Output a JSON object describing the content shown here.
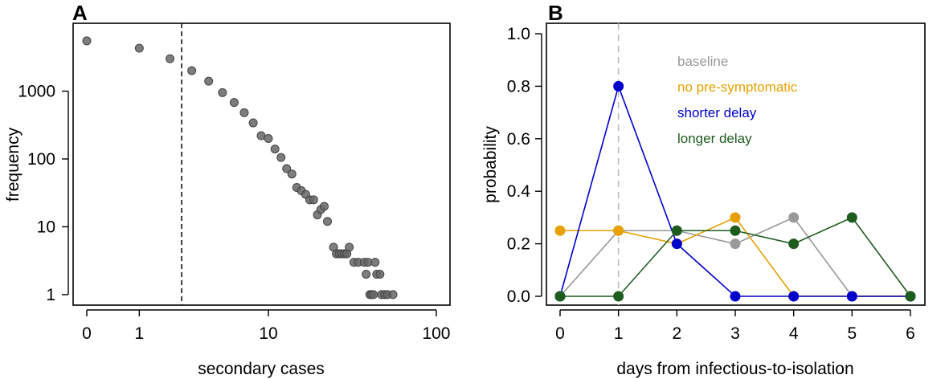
{
  "chart_data": [
    {
      "panel": "A",
      "type": "scatter",
      "xlabel": "secondary cases",
      "ylabel": "frequency",
      "x_scale": "log(x+1)",
      "y_scale": "log",
      "xlim": [
        0,
        120
      ],
      "ylim": [
        0.7,
        10000
      ],
      "x_ticks": [
        0,
        1,
        10,
        100
      ],
      "x_tick_labels": [
        "0",
        "1",
        "10",
        "100"
      ],
      "y_ticks": [
        1,
        10,
        100,
        1000
      ],
      "y_tick_labels": [
        "1",
        "10",
        "100",
        "1000"
      ],
      "reference_line_x": 2.5,
      "point_color": "#666666",
      "points": [
        [
          0,
          5500
        ],
        [
          1,
          4300
        ],
        [
          2,
          3000
        ],
        [
          3,
          2000
        ],
        [
          4,
          1400
        ],
        [
          5,
          950
        ],
        [
          6,
          680
        ],
        [
          7,
          480
        ],
        [
          8,
          340
        ],
        [
          9,
          220
        ],
        [
          10,
          200
        ],
        [
          11,
          140
        ],
        [
          12,
          105
        ],
        [
          13,
          72
        ],
        [
          14,
          60
        ],
        [
          15,
          38
        ],
        [
          16,
          34
        ],
        [
          17,
          30
        ],
        [
          18,
          25
        ],
        [
          19,
          25
        ],
        [
          20,
          15
        ],
        [
          21,
          18
        ],
        [
          22,
          20
        ],
        [
          23,
          12
        ],
        [
          25,
          5
        ],
        [
          26,
          4
        ],
        [
          27,
          4
        ],
        [
          28,
          4
        ],
        [
          29,
          4
        ],
        [
          30,
          4
        ],
        [
          31,
          5
        ],
        [
          33,
          3
        ],
        [
          35,
          3
        ],
        [
          38,
          3
        ],
        [
          39,
          2
        ],
        [
          40,
          3
        ],
        [
          41,
          1
        ],
        [
          42,
          1
        ],
        [
          43,
          1
        ],
        [
          44,
          3
        ],
        [
          45,
          2
        ],
        [
          47,
          2
        ],
        [
          48,
          1
        ],
        [
          50,
          1
        ],
        [
          52,
          1
        ],
        [
          56,
          1
        ]
      ]
    },
    {
      "panel": "B",
      "type": "line",
      "xlabel": "days from infectious-to-isolation",
      "ylabel": "probability",
      "xlim": [
        0,
        6
      ],
      "ylim": [
        0,
        1.0
      ],
      "x": [
        0,
        1,
        2,
        3,
        4,
        5,
        6
      ],
      "x_tick_labels": [
        "0",
        "1",
        "2",
        "3",
        "4",
        "5",
        "6"
      ],
      "y_ticks": [
        0,
        0.2,
        0.4,
        0.6,
        0.8,
        1.0
      ],
      "y_tick_labels": [
        "0.0",
        "0.2",
        "0.4",
        "0.6",
        "0.8",
        "1.0"
      ],
      "reference_line_x": 1,
      "legend_position": "top-right",
      "series": [
        {
          "name": "baseline",
          "color": "#999999",
          "values": [
            0,
            0.25,
            0.25,
            0.2,
            0.3,
            0,
            0
          ]
        },
        {
          "name": "no pre-symptomatic",
          "color": "#E6A000",
          "values": [
            0.25,
            0.25,
            0.2,
            0.3,
            0,
            0,
            0
          ]
        },
        {
          "name": "shorter delay",
          "color": "#0000CC",
          "values": [
            0,
            0.8,
            0.2,
            0,
            0,
            0,
            0
          ]
        },
        {
          "name": "longer delay",
          "color": "#1E5C1E",
          "values": [
            0,
            0,
            0.25,
            0.25,
            0.2,
            0.3,
            0
          ]
        }
      ]
    }
  ],
  "panel_labels": [
    "A",
    "B"
  ]
}
